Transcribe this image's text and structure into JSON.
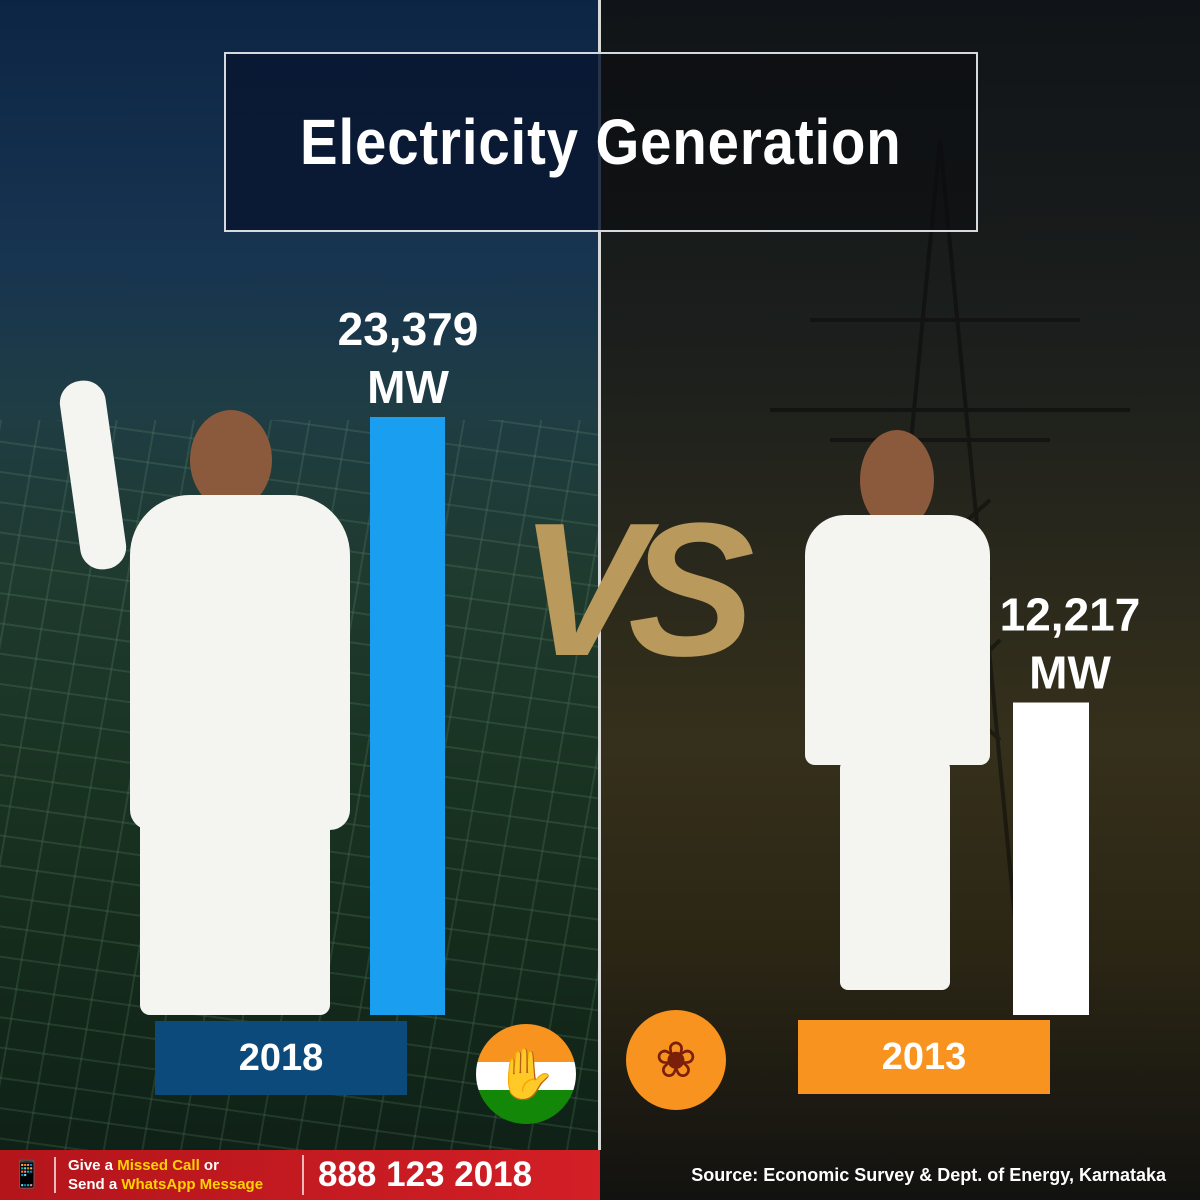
{
  "title": "Electricity Generation",
  "vs_label": "VS",
  "chart_data": {
    "type": "bar",
    "title": "Electricity Generation",
    "categories": [
      "2018",
      "2013"
    ],
    "values": [
      23379,
      12217
    ],
    "unit": "MW",
    "value_labels": [
      "23,379",
      "12,217"
    ],
    "unit_labels": [
      "MW",
      "MW"
    ],
    "colors": [
      "#1a9ff0",
      "#ffffff"
    ],
    "ylim": [
      0,
      23379
    ],
    "grid": false
  },
  "years": {
    "left": "2018",
    "right": "2013"
  },
  "colors": {
    "left_badge": "#0b4a7a",
    "right_badge": "#f7931e",
    "vs_gold": "#b99a5c",
    "footer_red": "#c8191f"
  },
  "logos": {
    "left": "hand-icon",
    "right": "lotus-icon"
  },
  "footer": {
    "cta_prefix_1": "Give a ",
    "cta_highlight_1": "Missed Call",
    "cta_suffix_1": " or",
    "cta_prefix_2": "Send a ",
    "cta_highlight_2": "WhatsApp Message",
    "phone_number": "888 123 2018",
    "source": "Source: Economic Survey & Dept. of Energy, Karnataka"
  }
}
